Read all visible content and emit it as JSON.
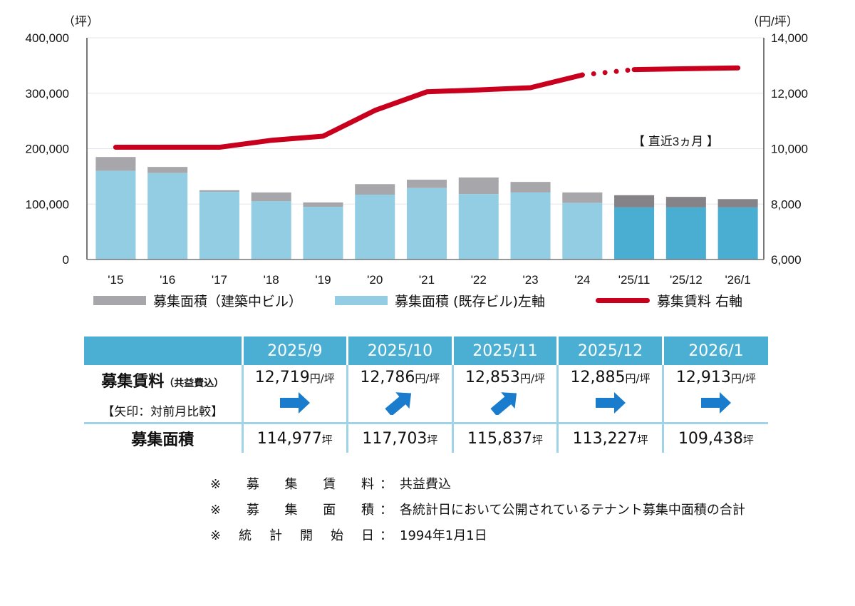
{
  "chart_data": {
    "type": "bar+line",
    "left_unit": "（坪）",
    "right_unit": "（円/坪）",
    "categories": [
      "'15",
      "'16",
      "'17",
      "'18",
      "'19",
      "'20",
      "'21",
      "'22",
      "'23",
      "'24",
      "'25/11",
      "'25/12",
      "'26/1"
    ],
    "left_ylim": [
      0,
      400000
    ],
    "left_ticks": [
      "0",
      "100,000",
      "200,000",
      "300,000",
      "400,000"
    ],
    "right_ylim": [
      6000,
      14000
    ],
    "right_ticks": [
      "6,000",
      "8,000",
      "10,000",
      "12,000",
      "14,000"
    ],
    "grid": true,
    "legend_placement": "bottom",
    "annotation": "【 直近3ヵ月 】",
    "series": [
      {
        "name": "募集面積（建築中ビル）",
        "type": "bar-stack",
        "color": "#a7a6aa",
        "recent_color": "#858387",
        "values": [
          25000,
          11000,
          3000,
          16000,
          8000,
          19000,
          15000,
          30000,
          19000,
          19000,
          22000,
          19000,
          15000
        ]
      },
      {
        "name": "募集面積 (既存ビル)左軸",
        "type": "bar-stack",
        "color": "#92cde3",
        "recent_color": "#4aaed3",
        "values": [
          160000,
          156000,
          122000,
          105000,
          95000,
          117000,
          129000,
          118000,
          121000,
          102000,
          94000,
          94000,
          94000
        ]
      },
      {
        "name": "募集賃料 右軸",
        "type": "line",
        "color": "#c8001e",
        "values": [
          10050,
          10050,
          10050,
          10300,
          10450,
          11380,
          12050,
          12120,
          12200,
          12660,
          12853,
          12885,
          12913
        ],
        "dotted_segment_after": "'24"
      }
    ]
  },
  "table": {
    "headers": [
      "2025/9",
      "2025/10",
      "2025/11",
      "2025/12",
      "2026/1"
    ],
    "rent_label": "募集賃料",
    "rent_sub": "（共益費込）",
    "arrow_label": "【矢印：対前月比較】",
    "rent_unit": "円/坪",
    "rents": [
      "12,719",
      "12,786",
      "12,853",
      "12,885",
      "12,913"
    ],
    "arrows": [
      "right",
      "up-right",
      "up-right",
      "right",
      "right"
    ],
    "arrow_color": "#1a7ccc",
    "area_label": "募集面積",
    "area_unit": "坪",
    "areas": [
      "114,977",
      "117,703",
      "115,837",
      "113,227",
      "109,438"
    ]
  },
  "notes": [
    {
      "key": [
        "※",
        "募",
        "集",
        "賃",
        "料"
      ],
      "value": "共益費込"
    },
    {
      "key": [
        "※",
        "募",
        "集",
        "面",
        "積"
      ],
      "value": "各統計日において公開されているテナント募集中面積の合計"
    },
    {
      "key": [
        "※",
        "統",
        "計",
        "開",
        "始",
        "日"
      ],
      "value": "1994年1月1日"
    }
  ]
}
